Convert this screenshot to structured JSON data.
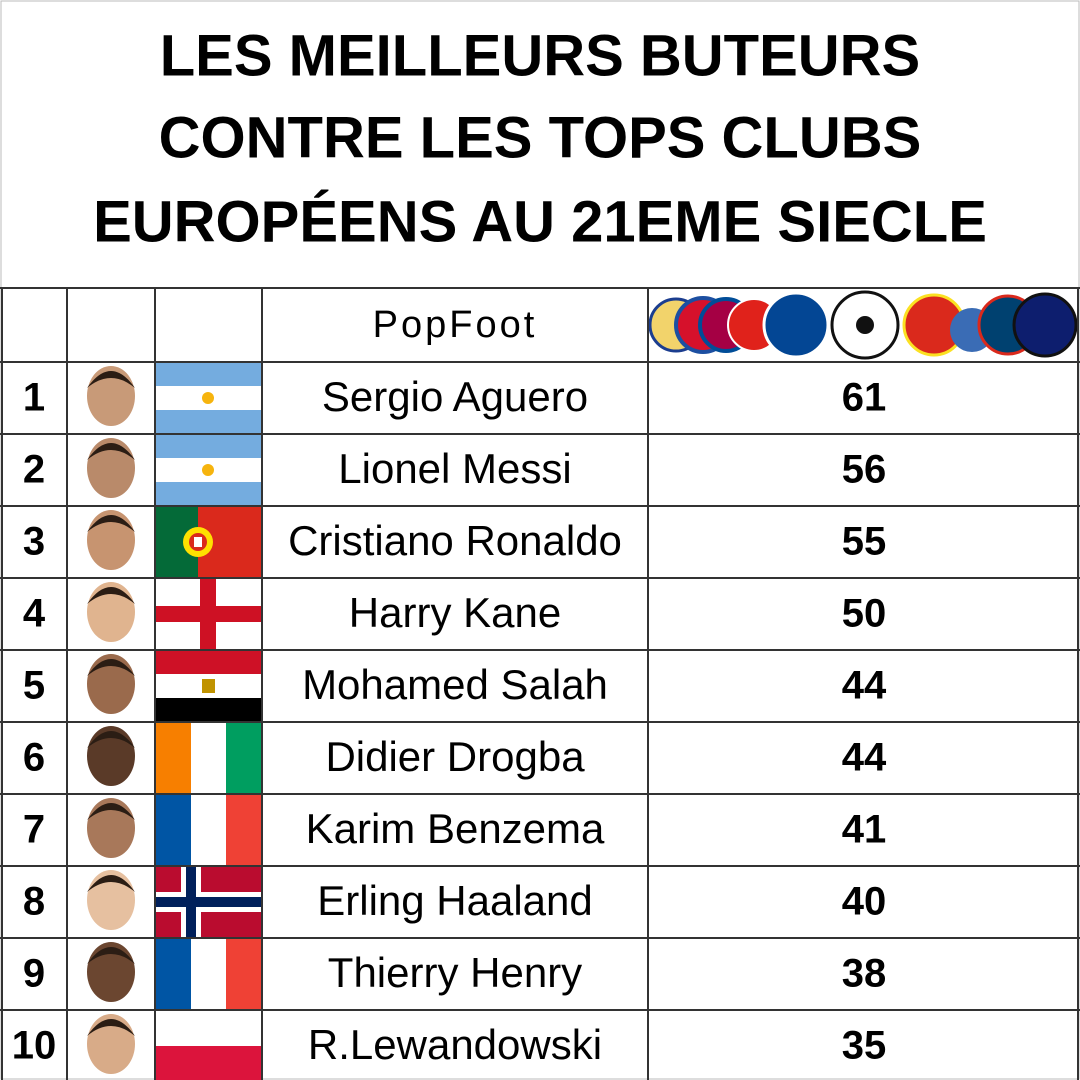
{
  "header": {
    "title_lines": [
      "LES MEILLEURS BUTEURS",
      "CONTRE LES TOPS CLUBS",
      "EUROPÉENS AU 21EME SIECLE"
    ],
    "brand": "PopFoot"
  },
  "table": {
    "rows": [
      {
        "rank": 1,
        "name": "Sergio Aguero",
        "goals": 61
      },
      {
        "rank": 2,
        "name": "Lionel Messi",
        "goals": 56
      },
      {
        "rank": 3,
        "name": "Cristiano Ronaldo",
        "goals": 55
      },
      {
        "rank": 4,
        "name": "Harry Kane",
        "goals": 50
      },
      {
        "rank": 5,
        "name": "Mohamed Salah",
        "goals": 44
      },
      {
        "rank": 6,
        "name": "Didier Drogba",
        "goals": 44
      },
      {
        "rank": 7,
        "name": "Karim Benzema",
        "goals": 41
      },
      {
        "rank": 8,
        "name": "Erling Haaland",
        "goals": 40
      },
      {
        "rank": 9,
        "name": "Thierry Henry",
        "goals": 38
      },
      {
        "rank": 10,
        "name": "R.Lewandowski",
        "goals": 35
      }
    ]
  }
}
